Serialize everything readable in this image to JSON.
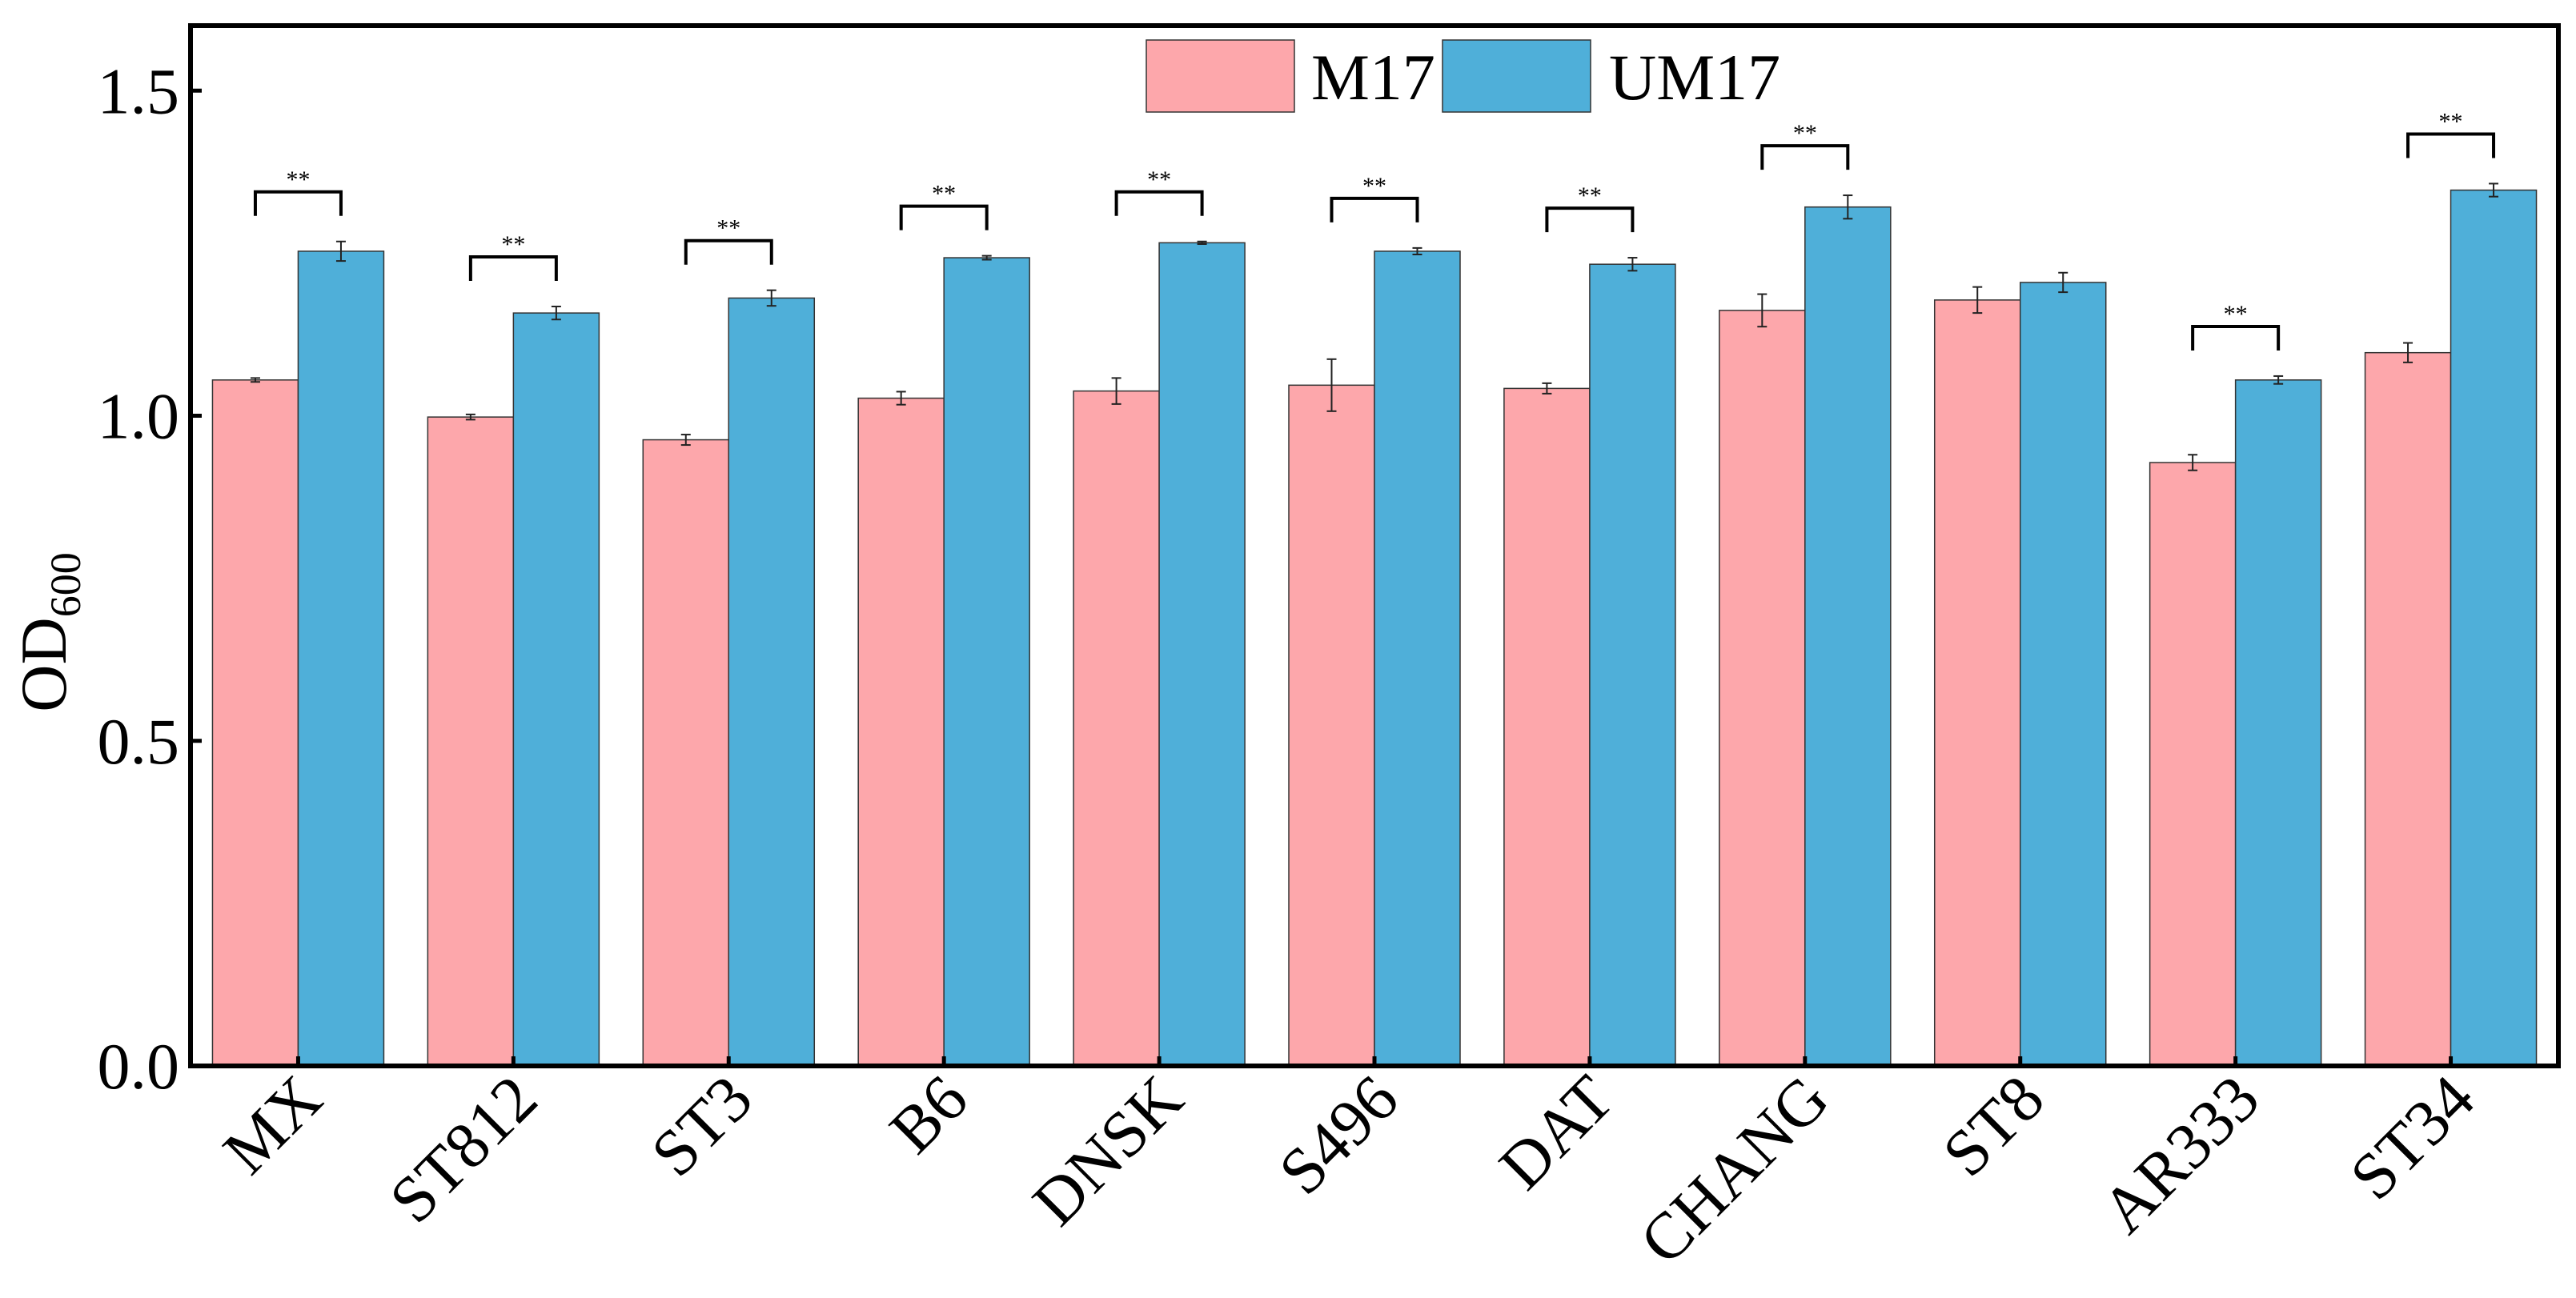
{
  "chart_data": {
    "type": "bar",
    "title": "",
    "xlabel": "",
    "ylabel": {
      "main": "OD",
      "sub": "600"
    },
    "ylim": [
      0,
      1.6
    ],
    "yticks": [
      0.0,
      0.5,
      1.0,
      1.5
    ],
    "ytick_labels": [
      "0.0",
      "0.5",
      "1.0",
      "1.5"
    ],
    "categories": [
      "MX",
      "ST812",
      "ST3",
      "B6",
      "DNSK",
      "S496",
      "DAT",
      "CHANG",
      "ST8",
      "AR333",
      "ST34"
    ],
    "series": [
      {
        "name": "M17",
        "color": "#FDA7AB",
        "values": [
          1.055,
          0.998,
          0.963,
          1.027,
          1.038,
          1.047,
          1.042,
          1.162,
          1.178,
          0.928,
          1.097
        ],
        "errors": [
          0.003,
          0.004,
          0.008,
          0.01,
          0.02,
          0.04,
          0.008,
          0.025,
          0.02,
          0.012,
          0.015
        ]
      },
      {
        "name": "UM17",
        "color": "#4FAFD9",
        "values": [
          1.253,
          1.158,
          1.181,
          1.243,
          1.266,
          1.253,
          1.233,
          1.321,
          1.205,
          1.055,
          1.347
        ],
        "errors": [
          0.015,
          0.01,
          0.012,
          0.003,
          0.002,
          0.005,
          0.01,
          0.018,
          0.015,
          0.006,
          0.01
        ]
      }
    ],
    "significance": [
      "**",
      "**",
      "**",
      "**",
      "**",
      "**",
      "**",
      "**",
      "",
      "**",
      "**"
    ],
    "legend": {
      "position": "top-center",
      "entries": [
        "M17",
        "UM17"
      ]
    },
    "grid": false
  }
}
